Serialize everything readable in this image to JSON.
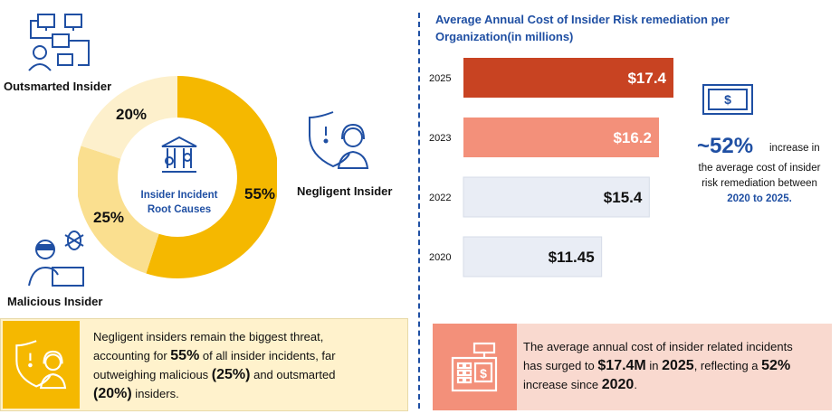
{
  "donut": {
    "center_label": "Insider Incident Root Causes",
    "segments": [
      {
        "name": "Negligent Insider",
        "value": 55,
        "label": "55%",
        "color": "#f5b800"
      },
      {
        "name": "Malicious Insider",
        "value": 25,
        "label": "25%",
        "color": "#fadf8f"
      },
      {
        "name": "Outsmarted Insider",
        "value": 20,
        "label": "20%",
        "color": "#fdf0cc"
      }
    ]
  },
  "labels": {
    "outsmarted": "Outsmarted Insider",
    "negligent": "Negligent Insider",
    "malicious": "Malicious Insider"
  },
  "chart_data": {
    "type": "bar",
    "orientation": "horizontal",
    "title": "Average Annual Cost of Insider Risk remediation per Organization(in millions)",
    "categories": [
      "2025",
      "2023",
      "2022",
      "2020"
    ],
    "values": [
      17.4,
      16.2,
      15.4,
      11.45
    ],
    "value_labels": [
      "$17.4",
      "$16.2",
      "$15.4",
      "$11.45"
    ],
    "colors": [
      "#c84322",
      "#f3907a",
      "#e9edf5",
      "#e9edf5"
    ],
    "xlim": [
      0,
      17.4
    ],
    "xlabel": "",
    "ylabel": ""
  },
  "callout": {
    "percent": "~52%",
    "line1": "increase in",
    "line2": "the average cost of insider",
    "line3": "risk remediation between",
    "line4": "2020 to 2025."
  },
  "panel_left": {
    "t1": "Negligent insiders remain the biggest threat,",
    "t2": "accounting for ",
    "b1": "55%",
    "t3": " of all insider incidents, far",
    "t4": "outweighing malicious ",
    "b2": "(25%)",
    "t5": " and outsmarted",
    "b3": "(20%)",
    "t6": " insiders."
  },
  "panel_right": {
    "t1": "The average annual cost of insider related incidents",
    "t2": "has surged to ",
    "b1": "$17.4M",
    "t3": " in ",
    "b2": "2025",
    "t4": ", reflecting a ",
    "b3": "52%",
    "t5": "increase since ",
    "b4": "2020",
    "t6": "."
  },
  "colors": {
    "accent_blue": "#1f4fa3",
    "gold": "#f5b800",
    "rust": "#c84322",
    "salmon": "#f3907a"
  }
}
